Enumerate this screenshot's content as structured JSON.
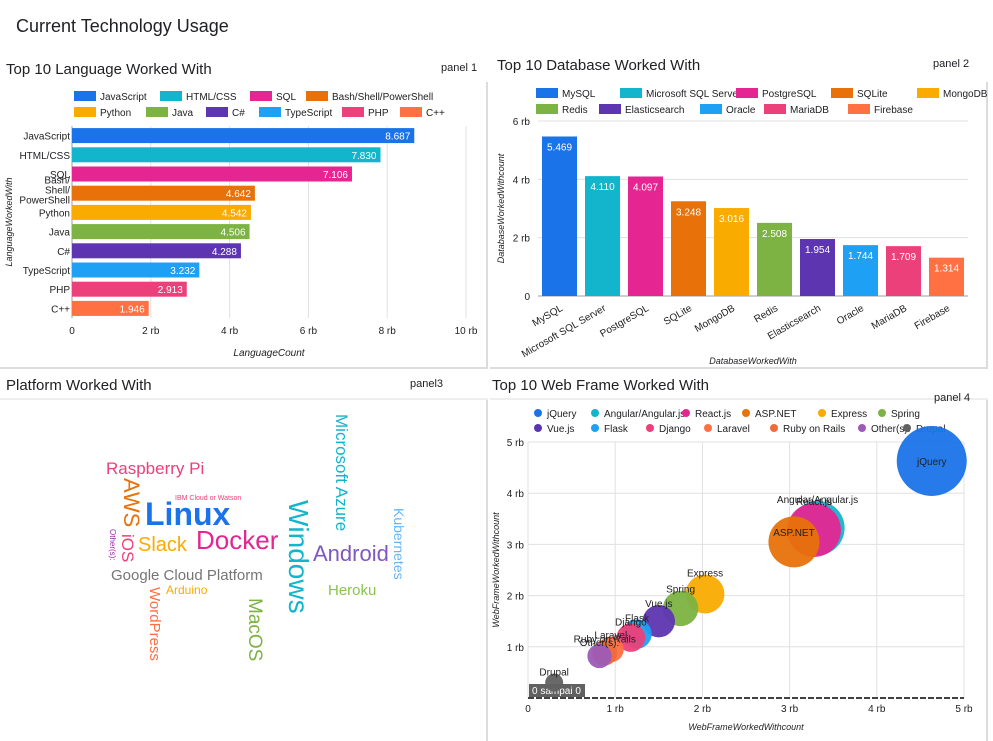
{
  "dashboard": {
    "title": "Current Technology Usage"
  },
  "panels": [
    {
      "title": "Top 10 Language Worked With",
      "label": "panel 1"
    },
    {
      "title": "Top 10 Database Worked With",
      "label": "panel 2"
    },
    {
      "title": "Platform Worked With",
      "label": "panel3"
    },
    {
      "title": "Top 10 Web Frame Worked With",
      "label": "panel 4"
    }
  ],
  "chart_data": [
    {
      "type": "bar",
      "orientation": "horizontal",
      "title": "Top 10 Language Worked With",
      "xlabel": "LanguageCount",
      "ylabel": "LanguageWorkedWith",
      "xlim": [
        0,
        10000
      ],
      "xticks": [
        "0",
        "2 rb",
        "4 rb",
        "6 rb",
        "8 rb",
        "10 rb"
      ],
      "categories": [
        "JavaScript",
        "HTML/CSS",
        "SQL",
        "Bash/Shell/PowerShell",
        "Python",
        "Java",
        "C#",
        "TypeScript",
        "PHP",
        "C++"
      ],
      "values": [
        8687,
        7830,
        7106,
        4642,
        4542,
        4506,
        4288,
        3232,
        2913,
        1946
      ],
      "value_labels": [
        "8.687",
        "7.830",
        "7.106",
        "4.642",
        "4.542",
        "4.506",
        "4.288",
        "3.232",
        "2.913",
        "1.946"
      ],
      "colors": [
        "#1a73e8",
        "#12b5cb",
        "#e52592",
        "#e8710a",
        "#f9ab00",
        "#7cb342",
        "#5e35b1",
        "#1ea0f4",
        "#ec407a",
        "#ff7043"
      ],
      "legend_position": "top",
      "grid": true
    },
    {
      "type": "bar",
      "orientation": "vertical",
      "title": "Top 10 Database Worked With",
      "xlabel": "DatabaseWorkedWith",
      "ylabel": "DatabaseWorkedWithcount",
      "ylim": [
        0,
        6000
      ],
      "yticks": [
        "0",
        "2 rb",
        "4 rb",
        "6 rb"
      ],
      "categories": [
        "MySQL",
        "Microsoft SQL Server",
        "PostgreSQL",
        "SQLite",
        "MongoDB",
        "Redis",
        "Elasticsearch",
        "Oracle",
        "MariaDB",
        "Firebase"
      ],
      "values": [
        5469,
        4110,
        4097,
        3248,
        3016,
        2508,
        1954,
        1744,
        1709,
        1314
      ],
      "value_labels": [
        "5.469",
        "4.110",
        "4.097",
        "3.248",
        "3.016",
        "2.508",
        "1.954",
        "1.744",
        "1.709",
        "1.314"
      ],
      "colors": [
        "#1a73e8",
        "#12b5cb",
        "#e52592",
        "#e8710a",
        "#f9ab00",
        "#7cb342",
        "#5e35b1",
        "#1ea0f4",
        "#ec407a",
        "#ff7043"
      ],
      "legend_position": "top",
      "grid": true
    },
    {
      "type": "wordcloud",
      "title": "Platform Worked With",
      "words": [
        {
          "text": "Raspberry Pi",
          "color": "#ec407a"
        },
        {
          "text": "IBM Cloud or Watson",
          "color": "#ec407a"
        },
        {
          "text": "AWS",
          "color": "#e8710a"
        },
        {
          "text": "Linux",
          "color": "#1a73e8"
        },
        {
          "text": "Docker",
          "color": "#e52592"
        },
        {
          "text": "Windows",
          "color": "#12b5cb"
        },
        {
          "text": "Android",
          "color": "#7e57c2"
        },
        {
          "text": "Microsoft Azure",
          "color": "#12b5cb"
        },
        {
          "text": "Kubernetes",
          "color": "#64b5f6"
        },
        {
          "text": "iOS",
          "color": "#ec407a"
        },
        {
          "text": "Slack",
          "color": "#f9ab00"
        },
        {
          "text": "Other(s):",
          "color": "#9c27b0"
        },
        {
          "text": "Google Cloud Platform",
          "color": "#757575"
        },
        {
          "text": "Arduino",
          "color": "#f9ab00"
        },
        {
          "text": "WordPress",
          "color": "#ff7043"
        },
        {
          "text": "MacOS",
          "color": "#7cb342"
        },
        {
          "text": "Heroku",
          "color": "#8bc34a"
        }
      ]
    },
    {
      "type": "scatter",
      "title": "Top 10 Web Frame Worked With",
      "xlabel": "WebFrameWorkedWithcount",
      "ylabel": "WebFrameWorkedWithcount",
      "xlim": [
        0,
        5000
      ],
      "ylim": [
        0,
        5000
      ],
      "xticks": [
        "0",
        "1 rb",
        "2 rb",
        "3 rb",
        "4 rb",
        "5 rb"
      ],
      "yticks": [
        "1 rb",
        "2 rb",
        "3 rb",
        "4 rb",
        "5 rb"
      ],
      "baseline_label": "0 sampai 0",
      "points": [
        {
          "name": "jQuery",
          "x": 4630,
          "y": 4630,
          "color": "#1a73e8"
        },
        {
          "name": "Angular/Angular.js",
          "x": 3320,
          "y": 3320,
          "color": "#12b5cb"
        },
        {
          "name": "React.js",
          "x": 3280,
          "y": 3280,
          "color": "#e52592"
        },
        {
          "name": "ASP.NET",
          "x": 3050,
          "y": 3050,
          "color": "#e8710a"
        },
        {
          "name": "Express",
          "x": 2030,
          "y": 2030,
          "color": "#f9ab00"
        },
        {
          "name": "Spring",
          "x": 1750,
          "y": 1750,
          "color": "#7cb342"
        },
        {
          "name": "Vue.js",
          "x": 1500,
          "y": 1500,
          "color": "#5e35b1"
        },
        {
          "name": "Flask",
          "x": 1250,
          "y": 1250,
          "color": "#1ea0f4"
        },
        {
          "name": "Django",
          "x": 1180,
          "y": 1180,
          "color": "#ec407a"
        },
        {
          "name": "Laravel",
          "x": 950,
          "y": 950,
          "color": "#ff7043"
        },
        {
          "name": "Ruby on Rails",
          "x": 880,
          "y": 880,
          "color": "#ef6c3a"
        },
        {
          "name": "Other(s):",
          "x": 820,
          "y": 820,
          "color": "#9c5bb6"
        },
        {
          "name": "Drupal",
          "x": 300,
          "y": 300,
          "color": "#616161"
        }
      ],
      "legend_position": "top",
      "grid": true
    }
  ]
}
